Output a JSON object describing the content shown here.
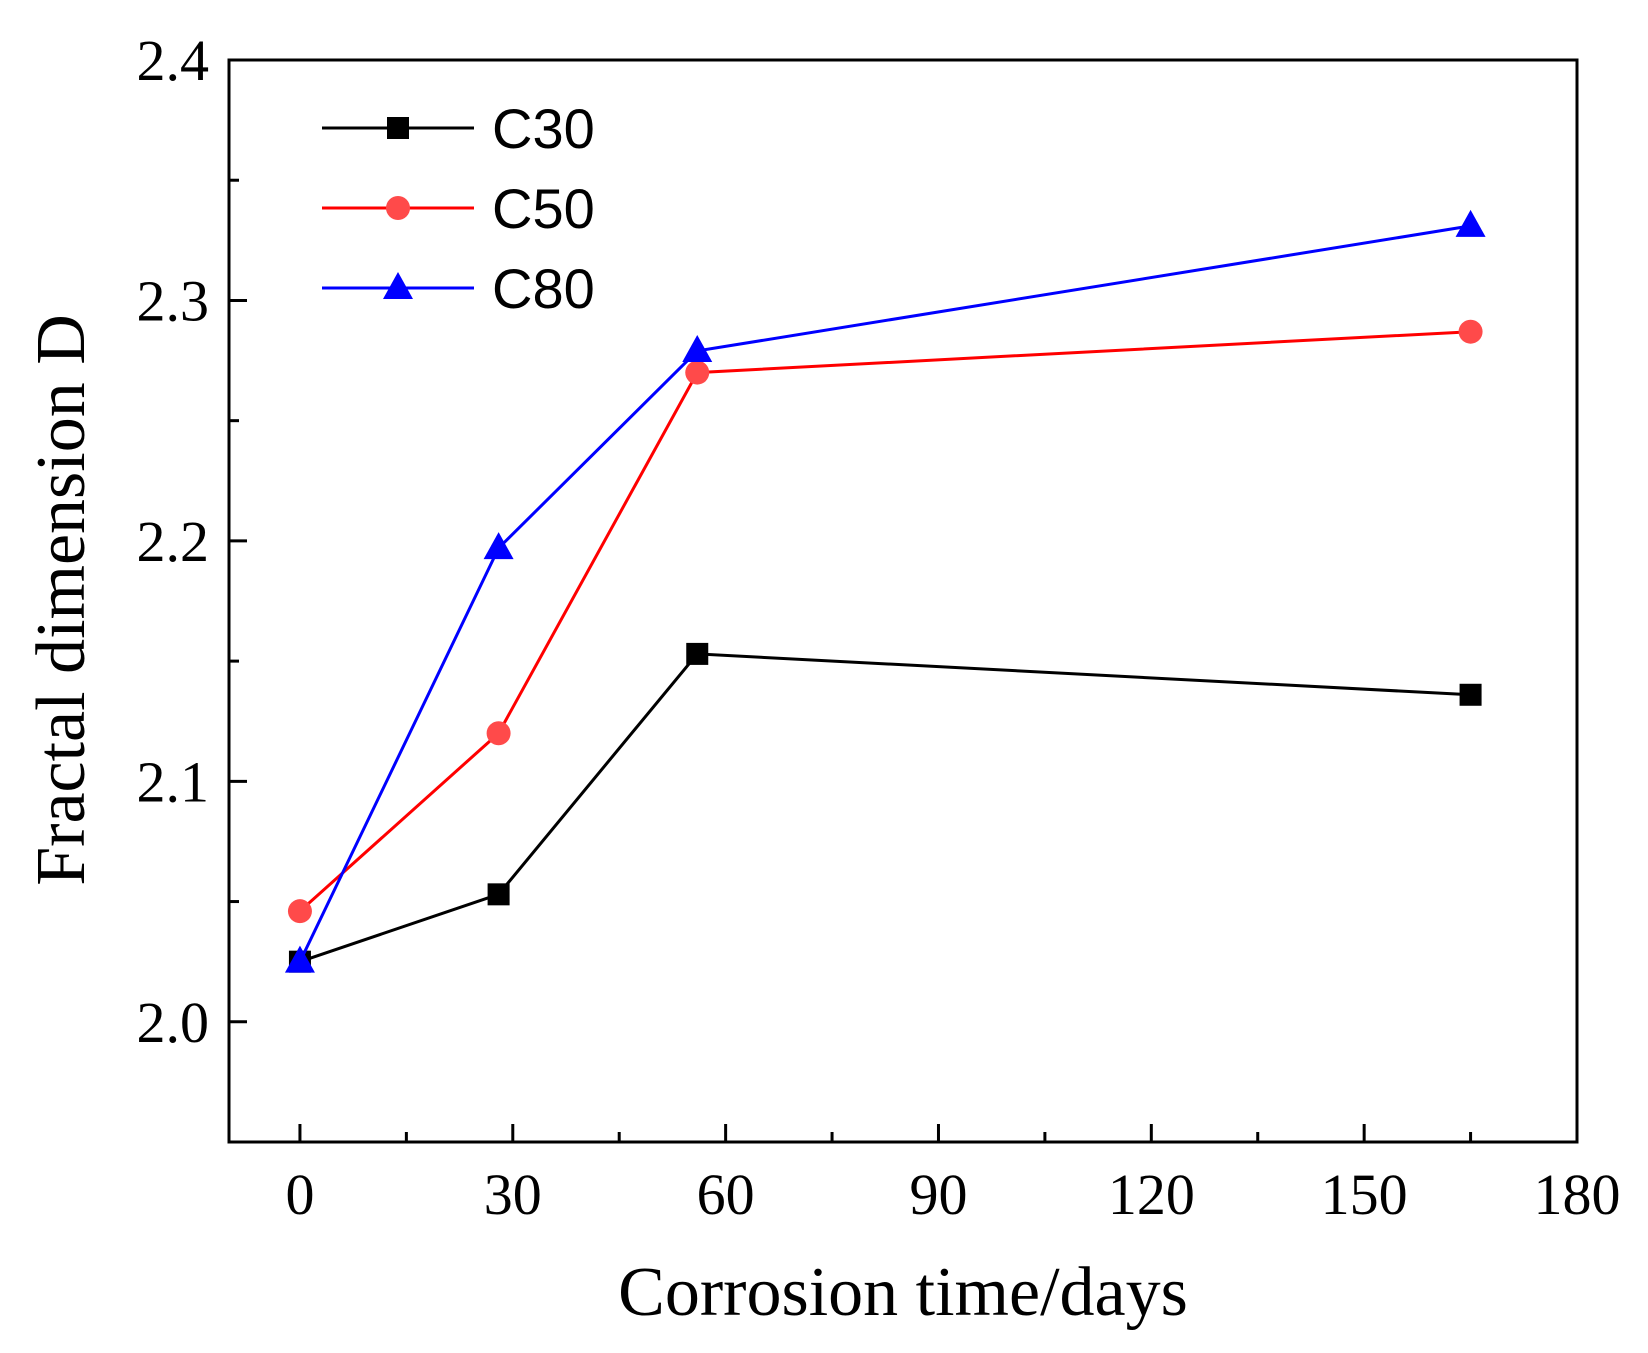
{
  "chart_data": {
    "type": "line",
    "xlabel": "Corrosion time/days",
    "ylabel": "Fractal dimension D",
    "xlim": [
      -10,
      180
    ],
    "ylim": [
      1.95,
      2.4
    ],
    "x_ticks": [
      0,
      30,
      60,
      90,
      120,
      150,
      180
    ],
    "x_tick_labels": [
      "0",
      "30",
      "60",
      "90",
      "120",
      "150",
      "180"
    ],
    "y_ticks": [
      2.0,
      2.1,
      2.2,
      2.3,
      2.4
    ],
    "y_tick_labels": [
      "2.0",
      "2.1",
      "2.2",
      "2.3",
      "2.4"
    ],
    "grid": false,
    "legend_position": "top-left",
    "x": [
      0,
      28,
      56,
      165
    ],
    "series": [
      {
        "name": "C30",
        "color": "#000000",
        "marker": "square",
        "values": [
          2.025,
          2.053,
          2.153,
          2.136
        ]
      },
      {
        "name": "C50",
        "color": "#ff0000",
        "marker": "circle",
        "values": [
          2.046,
          2.12,
          2.27,
          2.287
        ]
      },
      {
        "name": "C80",
        "color": "#0000ff",
        "marker": "triangle",
        "values": [
          2.025,
          2.197,
          2.279,
          2.331
        ]
      }
    ]
  }
}
